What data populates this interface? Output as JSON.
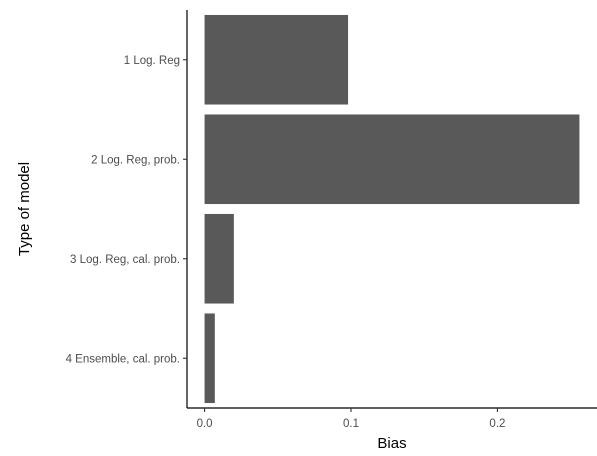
{
  "chart_data": {
    "type": "bar",
    "orientation": "horizontal",
    "title": "",
    "xlabel": "Bias",
    "ylabel": "Type of model",
    "categories": [
      "1 Log. Reg",
      "2 Log. Reg, prob.",
      "3 Log. Reg, cal. prob.",
      "4 Ensemble, cal. prob."
    ],
    "values": [
      0.098,
      0.256,
      0.02,
      0.007
    ],
    "xlim": [
      -0.012,
      0.268
    ],
    "xticks": [
      0.0,
      0.1,
      0.2
    ],
    "xtick_labels": [
      "0.0",
      "0.1",
      "0.2"
    ],
    "grid": false,
    "legend": "none",
    "bar_color": "#595959"
  }
}
